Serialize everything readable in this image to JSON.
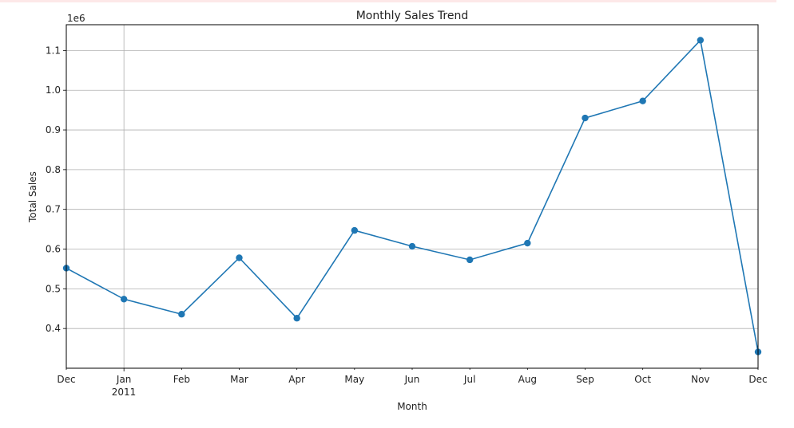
{
  "chart_data": {
    "type": "line",
    "title": "Monthly Sales Trend",
    "xlabel": "Month",
    "ylabel": "Total Sales",
    "y_offset_label": "1e6",
    "x_tick_labels": [
      "Dec",
      "Jan",
      "Feb",
      "Mar",
      "Apr",
      "May",
      "Jun",
      "Jul",
      "Aug",
      "Sep",
      "Oct",
      "Nov",
      "Dec"
    ],
    "x_year_label": "2011",
    "y_tick_labels": [
      "0.4",
      "0.5",
      "0.6",
      "0.7",
      "0.8",
      "0.9",
      "1.0",
      "1.1"
    ],
    "y_ticks": [
      0.4,
      0.5,
      0.6,
      0.7,
      0.8,
      0.9,
      1.0,
      1.1
    ],
    "ylim": [
      0.3,
      1.165
    ],
    "grid": true,
    "series": [
      {
        "color": "#1f77b4",
        "x": [
          "2010-12",
          "2011-01",
          "2011-02",
          "2011-03",
          "2011-04",
          "2011-05",
          "2011-06",
          "2011-07",
          "2011-08",
          "2011-09",
          "2011-10",
          "2011-11",
          "2011-12"
        ],
        "values": [
          0.552,
          0.474,
          0.436,
          0.578,
          0.426,
          0.647,
          0.607,
          0.573,
          0.615,
          0.93,
          0.973,
          1.126,
          0.341
        ]
      }
    ]
  }
}
